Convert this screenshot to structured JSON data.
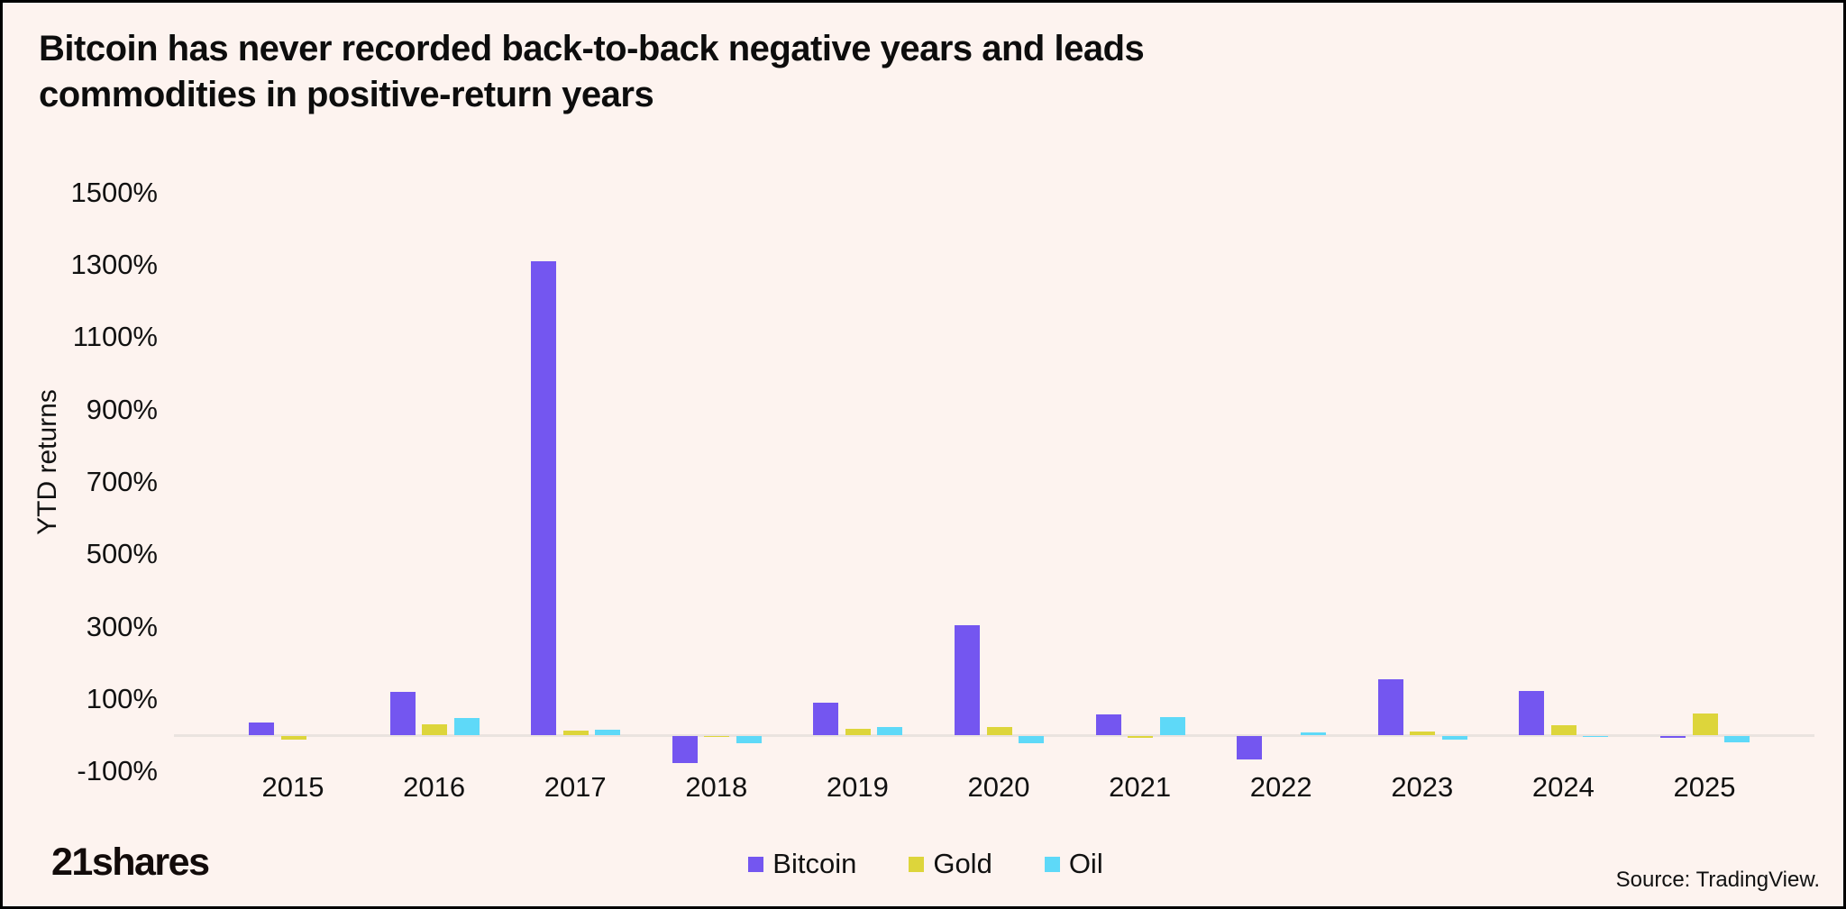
{
  "title": "Bitcoin has never recorded back-to-back negative years and leads commodities in positive-return years",
  "logo_text": "21shares",
  "source_text": "Source: TradingView.",
  "colors": {
    "background": "#fdf3ef",
    "border": "#000000",
    "bitcoin": "#7456f0",
    "gold": "#ddd53b",
    "oil": "#5ed9f8",
    "zero_line": "#eae3df",
    "text": "#111111"
  },
  "chart_data": {
    "type": "bar",
    "title": "Bitcoin has never recorded back-to-back negative years and leads commodities in positive-return years",
    "xlabel": "",
    "ylabel": "YTD returns",
    "categories": [
      "2015",
      "2016",
      "2017",
      "2018",
      "2019",
      "2020",
      "2021",
      "2022",
      "2023",
      "2024",
      "2025"
    ],
    "series": [
      {
        "name": "Bitcoin",
        "color": "#7456f0",
        "values": [
          35,
          120,
          1310,
          -75,
          90,
          304,
          57,
          -65,
          155,
          122,
          -5
        ]
      },
      {
        "name": "Gold",
        "color": "#ddd53b",
        "values": [
          -10,
          30,
          12,
          -3,
          18,
          23,
          -4,
          0,
          11,
          27,
          60
        ]
      },
      {
        "name": "Oil",
        "color": "#5ed9f8",
        "values": [
          0,
          48,
          15,
          -20,
          22,
          -21,
          50,
          8,
          -11,
          -2,
          -18
        ]
      }
    ],
    "yticks": [
      {
        "value": 1500,
        "label": "1500%"
      },
      {
        "value": 1300,
        "label": "1300%"
      },
      {
        "value": 1100,
        "label": "1100%"
      },
      {
        "value": 900,
        "label": "900%"
      },
      {
        "value": 700,
        "label": "700%"
      },
      {
        "value": 500,
        "label": "500%"
      },
      {
        "value": 300,
        "label": "300%"
      },
      {
        "value": 100,
        "label": "100%"
      },
      {
        "value": -100,
        "label": "-100%"
      }
    ],
    "ylim": [
      -100,
      1500
    ],
    "grid": false,
    "legend_position": "bottom"
  }
}
